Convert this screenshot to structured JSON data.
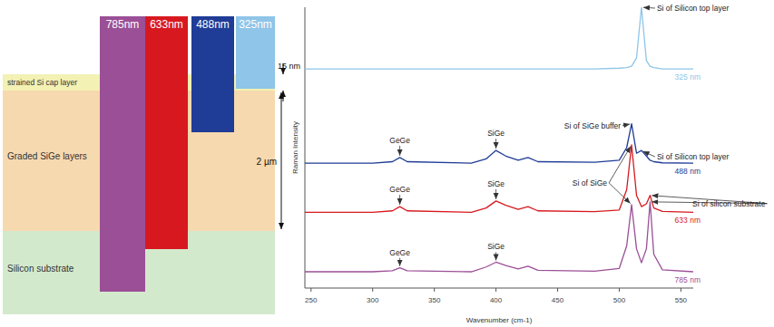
{
  "diagram": {
    "layers": [
      {
        "label": "strained Si cap layer",
        "color": "#f3f1b3"
      },
      {
        "label": "Graded SiGe layers",
        "color": "#f7d9b0"
      },
      {
        "label": "Silicon substrate",
        "color": "#d3e9cc"
      }
    ],
    "lasers": [
      {
        "label": "785nm",
        "color": "#9b4f96"
      },
      {
        "label": "633nm",
        "color": "#d7191f"
      },
      {
        "label": "488nm",
        "color": "#1f3c96"
      },
      {
        "label": "325nm",
        "color": "#8ec5e8"
      }
    ],
    "dimensions": [
      {
        "label": "15 nm"
      },
      {
        "label": "2 µm"
      }
    ]
  },
  "chart_data": {
    "type": "line",
    "x_label": "Wavenumber (cm-1)",
    "y_label": "Raman Intensity",
    "x": [
      240,
      300,
      316,
      322,
      328,
      380,
      392,
      400,
      408,
      418,
      426,
      434,
      480,
      500,
      506,
      510,
      514,
      518,
      522,
      525,
      528,
      535,
      560
    ],
    "series": [
      {
        "name": "325 nm",
        "color": "#8ec5e8",
        "values": [
          78,
          78,
          78,
          78,
          78,
          78,
          78,
          78,
          78,
          78,
          78,
          78,
          78,
          78.3,
          78.5,
          79,
          82,
          100,
          81,
          79,
          78.5,
          78,
          78
        ]
      },
      {
        "name": "488 nm",
        "color": "#1f3c96",
        "values": [
          44.5,
          44.5,
          45,
          46.5,
          45,
          44.5,
          46,
          49,
          47,
          45.5,
          46.5,
          45,
          44.8,
          45.5,
          50,
          58.5,
          48,
          49,
          47,
          45.5,
          45,
          44.6,
          44.5
        ]
      },
      {
        "name": "633 nm",
        "color": "#d7191f",
        "values": [
          27,
          27,
          27.5,
          29,
          27.5,
          27,
          28.5,
          31,
          29.5,
          28,
          29,
          27.5,
          27.2,
          27.8,
          35,
          51,
          33,
          29,
          30,
          33,
          28.5,
          27.3,
          27
        ]
      },
      {
        "name": "785 nm",
        "color": "#9b4f96",
        "values": [
          5.8,
          5.8,
          6.2,
          7.2,
          6.2,
          5.8,
          7.5,
          9.2,
          8,
          6.8,
          7.8,
          6.3,
          6,
          7,
          15,
          29.7,
          14,
          9,
          14,
          30.7,
          12,
          6.5,
          5.8
        ]
      }
    ],
    "xlim": [
      245,
      560
    ],
    "xticks": [
      250,
      300,
      350,
      400,
      450,
      500,
      550
    ],
    "ylim": [
      0,
      100
    ],
    "tick_labels": "x",
    "grid": false,
    "annotations": [
      {
        "text": "Si of Silicon top layer",
        "points": [
          [
            518,
            100
          ]
        ]
      },
      {
        "text": "GeGe",
        "points": [
          [
            322,
            46.5
          ]
        ]
      },
      {
        "text": "SiGe",
        "points": [
          [
            400,
            49
          ]
        ]
      },
      {
        "text": "Si of SiGe buffer",
        "points": [
          [
            510,
            58.5
          ]
        ]
      },
      {
        "text": "Si of Silicon top layer",
        "points": [
          [
            518,
            49
          ]
        ]
      },
      {
        "text": "GeGe",
        "points": [
          [
            322,
            29
          ]
        ]
      },
      {
        "text": "SiGe",
        "points": [
          [
            400,
            31
          ]
        ]
      },
      {
        "text": "Si of SiGe",
        "points": [
          [
            510,
            51
          ],
          [
            510,
            29.7
          ]
        ]
      },
      {
        "text": "Si of silicon substrate",
        "points": [
          [
            525,
            33
          ],
          [
            525,
            30.7
          ]
        ]
      },
      {
        "text": "GeGe",
        "points": [
          [
            322,
            7.2
          ]
        ]
      },
      {
        "text": "SiGe",
        "points": [
          [
            400,
            9.2
          ]
        ]
      }
    ]
  }
}
